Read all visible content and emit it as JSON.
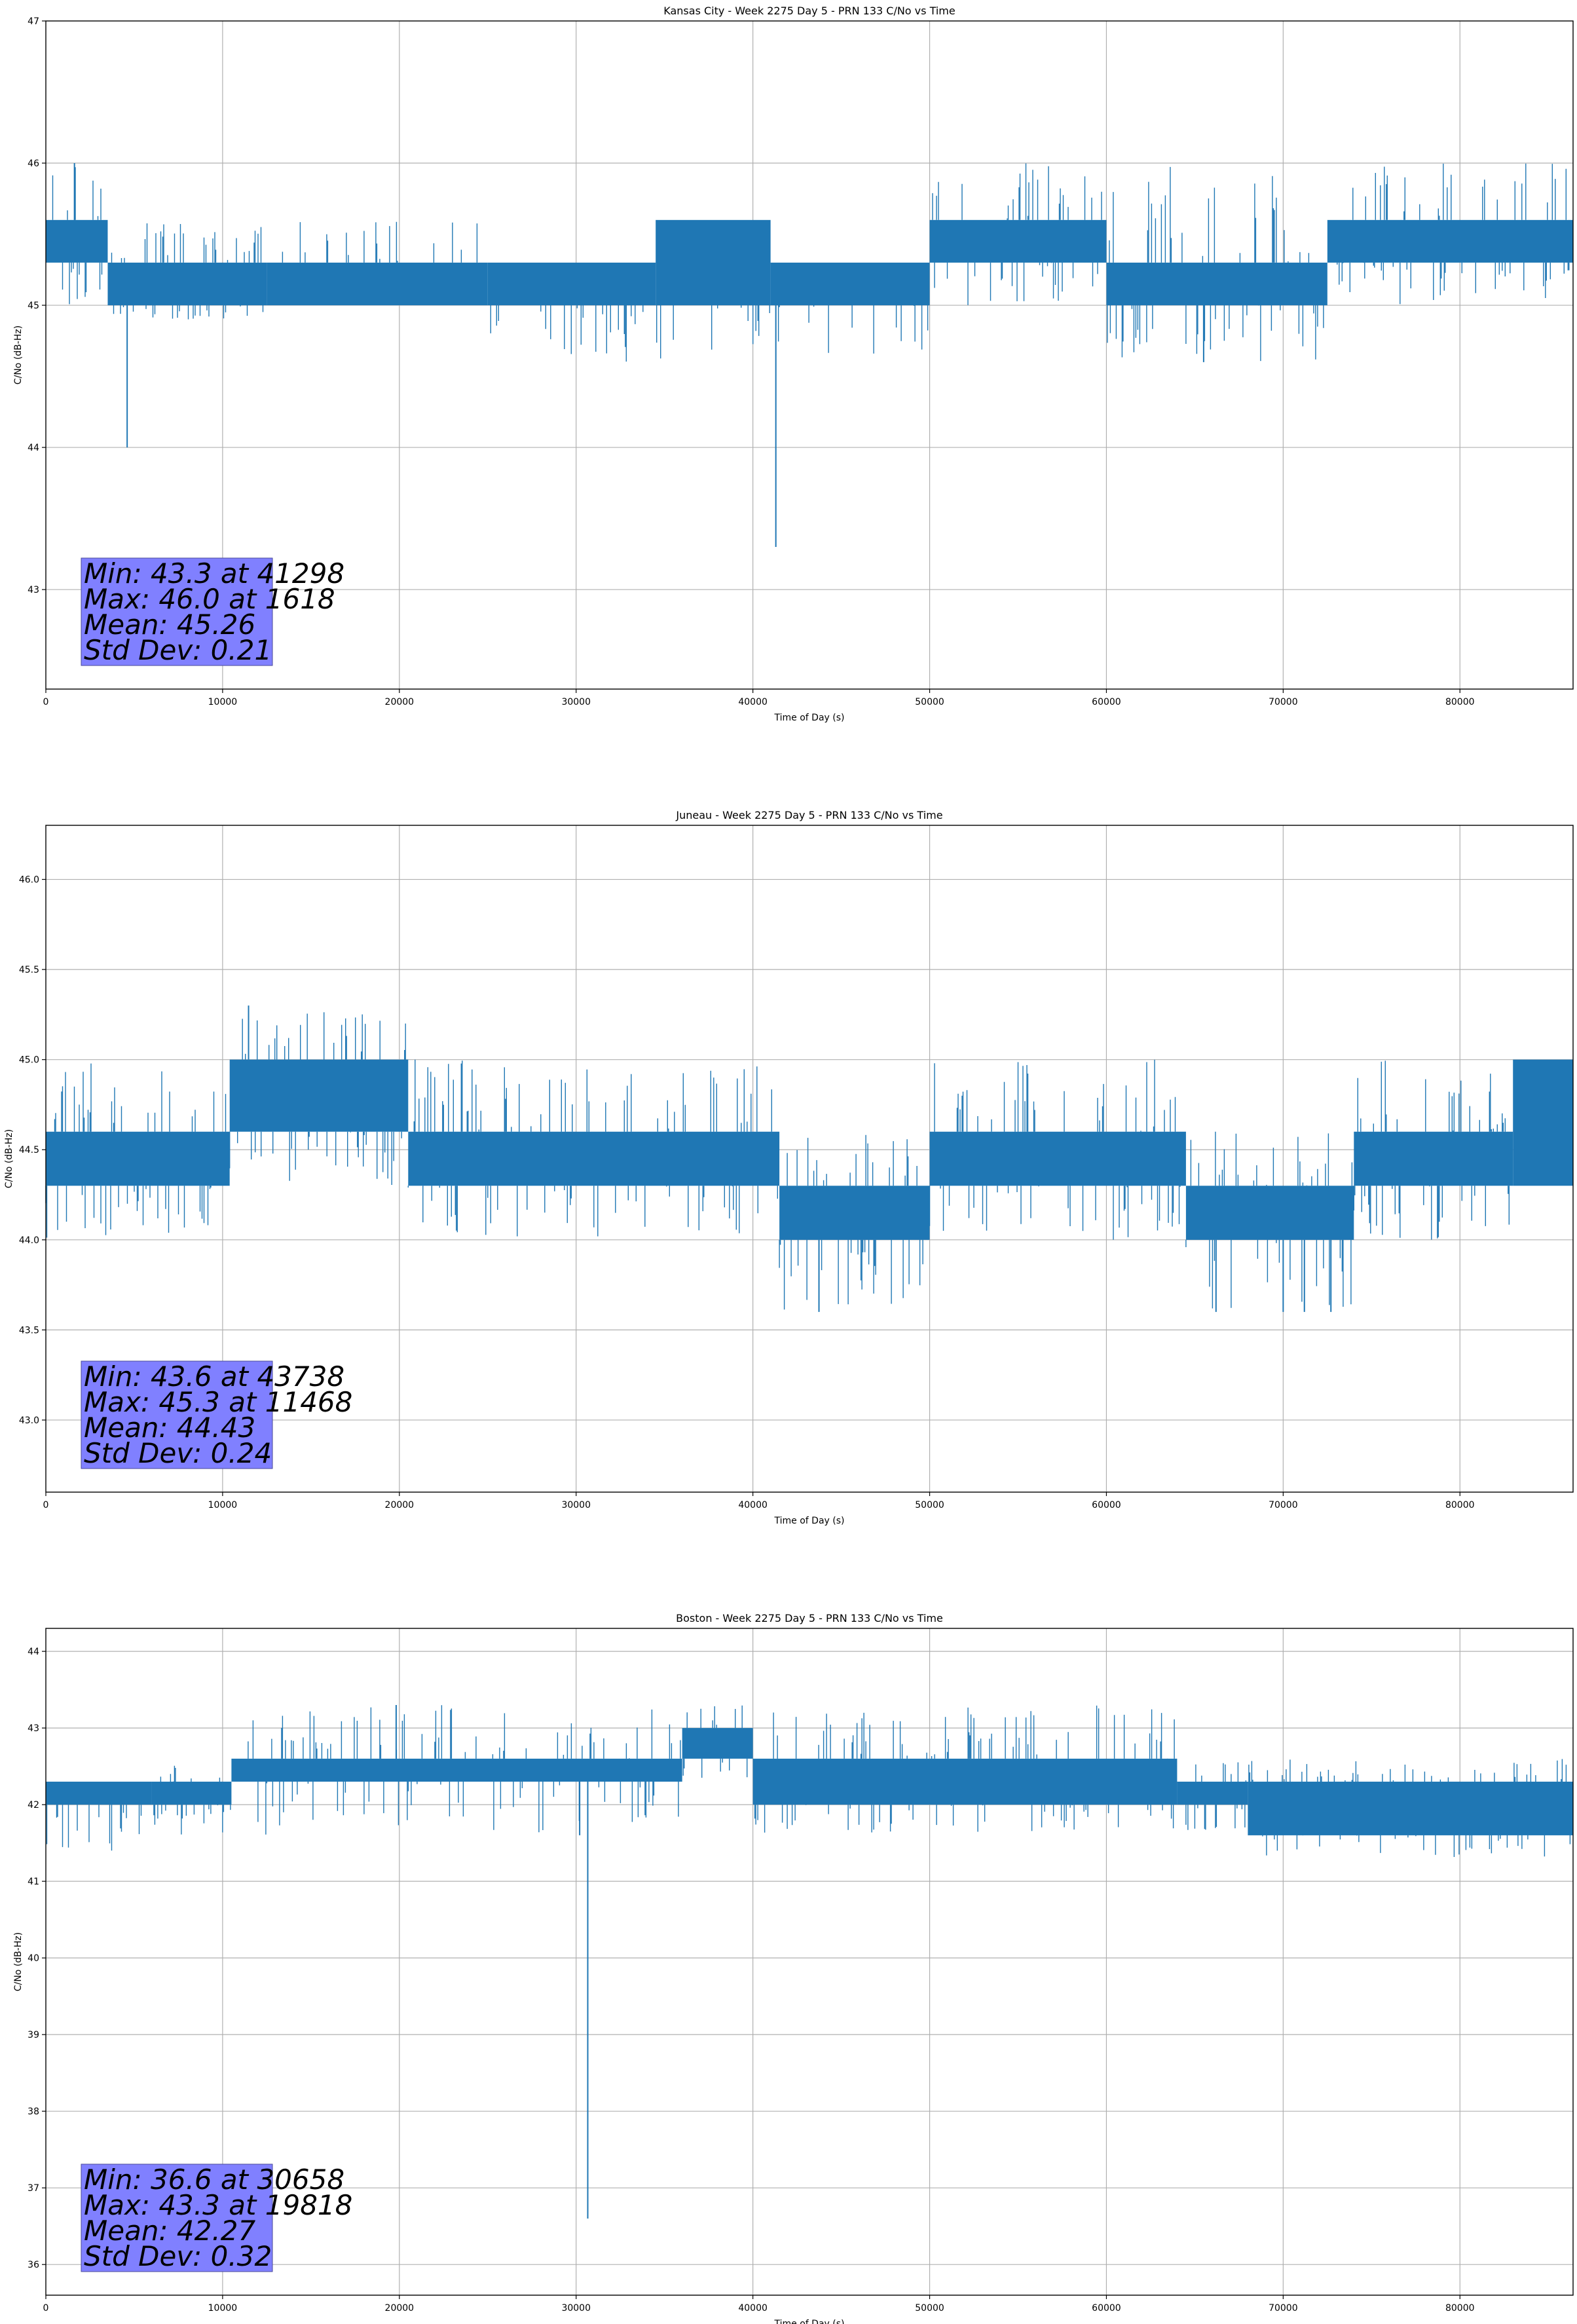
{
  "chart_data": [
    {
      "type": "line",
      "title": "Kansas City - Week 2275 Day 5 - PRN 133 C/No vs Time",
      "xlabel": "Time of Day (s)",
      "ylabel": "C/No (dB-Hz)",
      "xlim": [
        0,
        86400
      ],
      "ylim": [
        42.3,
        47
      ],
      "xticks": [
        0,
        10000,
        20000,
        30000,
        40000,
        50000,
        60000,
        70000,
        80000
      ],
      "yticks": [
        43,
        44,
        45,
        46,
        47
      ],
      "ytick_labels": [
        "43",
        "44",
        "45",
        "46",
        "47"
      ],
      "grid": true,
      "series_color": "#1f77b4",
      "segments": [
        {
          "x0": 0,
          "x1": 3500,
          "base": [
            45.3,
            45.6
          ],
          "lo": 45.0,
          "hi": 46.0
        },
        {
          "x0": 3500,
          "x1": 12500,
          "base": [
            45.0,
            45.3
          ],
          "lo": 44.9,
          "hi": 45.6
        },
        {
          "x0": 12500,
          "x1": 25000,
          "base": [
            45.0,
            45.3
          ],
          "lo": 45.0,
          "hi": 45.6
        },
        {
          "x0": 25000,
          "x1": 34500,
          "base": [
            45.0,
            45.3
          ],
          "lo": 44.6,
          "hi": 45.3
        },
        {
          "x0": 34500,
          "x1": 41000,
          "base": [
            45.0,
            45.6
          ],
          "lo": 44.6,
          "hi": 45.6
        },
        {
          "x0": 41000,
          "x1": 50000,
          "base": [
            45.0,
            45.3
          ],
          "lo": 44.6,
          "hi": 45.3
        },
        {
          "x0": 50000,
          "x1": 60000,
          "base": [
            45.3,
            45.6
          ],
          "lo": 45.0,
          "hi": 46.0
        },
        {
          "x0": 60000,
          "x1": 72500,
          "base": [
            45.0,
            45.3
          ],
          "lo": 44.6,
          "hi": 46.0
        },
        {
          "x0": 72500,
          "x1": 86400,
          "base": [
            45.3,
            45.6
          ],
          "lo": 45.0,
          "hi": 46.0
        }
      ],
      "spikes": [
        {
          "x": 1618,
          "y": 46.0
        },
        {
          "x": 4600,
          "y": 44.0
        },
        {
          "x": 41298,
          "y": 43.3
        },
        {
          "x": 65500,
          "y": 44.6
        }
      ],
      "stats": {
        "min": "Min: 43.3 at 41298",
        "max": "Max: 46.0 at 1618",
        "mean": "Mean: 45.26",
        "std": "Std Dev: 0.21"
      },
      "stats_box_color": "#8080ff"
    },
    {
      "type": "line",
      "title": "Juneau - Week 2275 Day 5 - PRN 133 C/No vs Time",
      "xlabel": "Time of Day (s)",
      "ylabel": "C/No (dB-Hz)",
      "xlim": [
        0,
        86400
      ],
      "ylim": [
        42.6,
        46.3
      ],
      "xticks": [
        0,
        10000,
        20000,
        30000,
        40000,
        50000,
        60000,
        70000,
        80000
      ],
      "yticks": [
        43.0,
        43.5,
        44.0,
        44.5,
        45.0,
        45.5,
        46.0
      ],
      "ytick_labels": [
        "43.0",
        "43.5",
        "44.0",
        "44.5",
        "45.0",
        "45.5",
        "46.0"
      ],
      "grid": true,
      "series_color": "#1f77b4",
      "segments": [
        {
          "x0": 0,
          "x1": 10400,
          "base": [
            44.3,
            44.6
          ],
          "lo": 44.0,
          "hi": 45.0
        },
        {
          "x0": 10400,
          "x1": 20500,
          "base": [
            44.6,
            45.0
          ],
          "lo": 44.3,
          "hi": 45.3
        },
        {
          "x0": 20500,
          "x1": 41500,
          "base": [
            44.3,
            44.6
          ],
          "lo": 44.0,
          "hi": 45.0
        },
        {
          "x0": 41500,
          "x1": 50000,
          "base": [
            44.0,
            44.3
          ],
          "lo": 43.6,
          "hi": 44.6
        },
        {
          "x0": 50000,
          "x1": 64500,
          "base": [
            44.3,
            44.6
          ],
          "lo": 44.0,
          "hi": 45.0
        },
        {
          "x0": 64500,
          "x1": 74000,
          "base": [
            44.0,
            44.3
          ],
          "lo": 43.6,
          "hi": 44.6
        },
        {
          "x0": 74000,
          "x1": 83000,
          "base": [
            44.3,
            44.6
          ],
          "lo": 44.0,
          "hi": 45.0
        },
        {
          "x0": 83000,
          "x1": 86400,
          "base": [
            44.3,
            45.0
          ],
          "lo": 44.3,
          "hi": 45.0
        }
      ],
      "spikes": [
        {
          "x": 11468,
          "y": 45.3
        },
        {
          "x": 43738,
          "y": 43.6
        },
        {
          "x": 66200,
          "y": 43.6
        },
        {
          "x": 70000,
          "y": 43.6
        },
        {
          "x": 71200,
          "y": 43.6
        },
        {
          "x": 72700,
          "y": 43.6
        }
      ],
      "stats": {
        "min": "Min: 43.6 at 43738",
        "max": "Max: 45.3 at 11468",
        "mean": "Mean: 44.43",
        "std": "Std Dev: 0.24"
      },
      "stats_box_color": "#8080ff"
    },
    {
      "type": "line",
      "title": "Boston - Week 2275 Day 5 - PRN 133 C/No vs Time",
      "xlabel": "Time of Day (s)",
      "ylabel": "C/No (dB-Hz)",
      "xlim": [
        0,
        86400
      ],
      "ylim": [
        35.6,
        44.3
      ],
      "xticks": [
        0,
        10000,
        20000,
        30000,
        40000,
        50000,
        60000,
        70000,
        80000
      ],
      "yticks": [
        36,
        37,
        38,
        39,
        40,
        41,
        42,
        43,
        44
      ],
      "ytick_labels": [
        "36",
        "37",
        "38",
        "39",
        "40",
        "41",
        "42",
        "43",
        "44"
      ],
      "grid": true,
      "series_color": "#1f77b4",
      "segments": [
        {
          "x0": 0,
          "x1": 6000,
          "base": [
            42.0,
            42.3
          ],
          "lo": 41.3,
          "hi": 42.3
        },
        {
          "x0": 6000,
          "x1": 10500,
          "base": [
            42.0,
            42.3
          ],
          "lo": 41.6,
          "hi": 42.6
        },
        {
          "x0": 10500,
          "x1": 36000,
          "base": [
            42.3,
            42.6
          ],
          "lo": 41.6,
          "hi": 43.3
        },
        {
          "x0": 36000,
          "x1": 40000,
          "base": [
            42.6,
            43.0
          ],
          "lo": 42.3,
          "hi": 43.3
        },
        {
          "x0": 40000,
          "x1": 64000,
          "base": [
            42.0,
            42.6
          ],
          "lo": 41.6,
          "hi": 43.3
        },
        {
          "x0": 64000,
          "x1": 68000,
          "base": [
            42.0,
            42.3
          ],
          "lo": 41.6,
          "hi": 42.6
        },
        {
          "x0": 68000,
          "x1": 86400,
          "base": [
            41.6,
            42.3
          ],
          "lo": 41.3,
          "hi": 42.6
        }
      ],
      "spikes": [
        {
          "x": 19818,
          "y": 43.3
        },
        {
          "x": 30658,
          "y": 36.6
        },
        {
          "x": 30200,
          "y": 41.6
        }
      ],
      "stats": {
        "min": "Min: 36.6 at 30658",
        "max": "Max: 43.3 at 19818",
        "mean": "Mean: 42.27",
        "std": "Std Dev: 0.32"
      },
      "stats_box_color": "#8080ff"
    }
  ]
}
